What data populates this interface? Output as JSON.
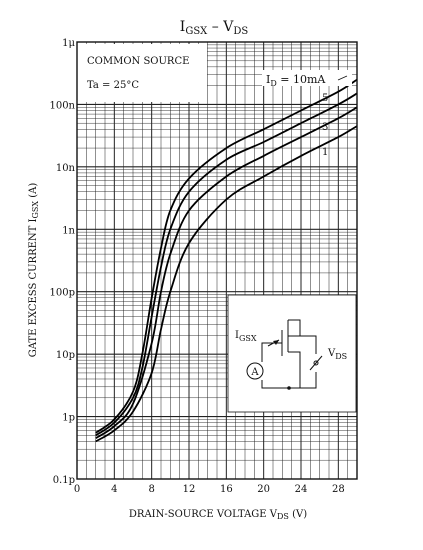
{
  "chart_data": {
    "type": "line",
    "title": {
      "main": "I",
      "main_sub": "GSX",
      "sep": " – ",
      "v": "V",
      "v_sub": "DS"
    },
    "xlabel": {
      "main": "DRAIN-SOURCE VOLTAGE  V",
      "sub": "DS",
      "unit": " (V)"
    },
    "ylabel": {
      "main": "GATE EXCESS CURRENT  I",
      "sub": "GSX",
      "unit": " (A)"
    },
    "x_scale": "linear",
    "y_scale": "log",
    "xlim": [
      0,
      30
    ],
    "ylim": [
      1e-13,
      1e-06
    ],
    "x_ticks": [
      0,
      4,
      8,
      12,
      16,
      20,
      24,
      28
    ],
    "y_ticks": [
      {
        "value": 1e-13,
        "label": "0.1p"
      },
      {
        "value": 1e-12,
        "label": "1p"
      },
      {
        "value": 1e-11,
        "label": "10p"
      },
      {
        "value": 1e-10,
        "label": "100p"
      },
      {
        "value": 1e-09,
        "label": "1n"
      },
      {
        "value": 1e-08,
        "label": "10n"
      },
      {
        "value": 1e-07,
        "label": "100n"
      },
      {
        "value": 1e-06,
        "label": "1μ"
      }
    ],
    "grid": true,
    "annotations": {
      "box_line1": "COMMON SOURCE",
      "box_line2": "Ta = 25°C",
      "id_label_main": "I",
      "id_label_sub": "D",
      "id_label_value": " = 10mA"
    },
    "series": [
      {
        "name": "10mA",
        "x": [
          2,
          4,
          6,
          7,
          8,
          9,
          10,
          12,
          16,
          20,
          24,
          28,
          30
        ],
        "y": [
          5.5e-13,
          9e-13,
          2.5e-12,
          1e-11,
          8e-11,
          5e-10,
          2e-09,
          6.5e-09,
          2e-08,
          4e-08,
          8e-08,
          1.6e-07,
          2.5e-07
        ]
      },
      {
        "name": "5",
        "x": [
          2,
          4,
          6,
          7,
          8,
          9,
          10,
          12,
          16,
          20,
          24,
          28,
          30
        ],
        "y": [
          5e-13,
          8e-13,
          2e-12,
          6e-12,
          4e-11,
          2.5e-10,
          1e-09,
          4e-09,
          1.3e-08,
          2.5e-08,
          5e-08,
          1e-07,
          1.5e-07
        ]
      },
      {
        "name": "3",
        "x": [
          2,
          4,
          6,
          8,
          9,
          10,
          12,
          16,
          20,
          24,
          28,
          30
        ],
        "y": [
          4.5e-13,
          7e-13,
          1.6e-12,
          1.5e-11,
          1e-10,
          4e-10,
          2e-09,
          7e-09,
          1.5e-08,
          3e-08,
          6e-08,
          9e-08
        ]
      },
      {
        "name": "1",
        "x": [
          2,
          4,
          6,
          8,
          9,
          10,
          12,
          16,
          20,
          24,
          28,
          30
        ],
        "y": [
          4e-13,
          6e-13,
          1.2e-12,
          5e-12,
          2.5e-11,
          1e-10,
          6e-10,
          3e-09,
          7e-09,
          1.5e-08,
          3e-08,
          4.5e-08
        ]
      }
    ],
    "series_labels": [
      "5",
      "3",
      "1"
    ],
    "inset": {
      "igsx_main": "I",
      "igsx_sub": "GSX",
      "vds_main": "V",
      "vds_sub": "DS",
      "ammeter": "A"
    }
  }
}
